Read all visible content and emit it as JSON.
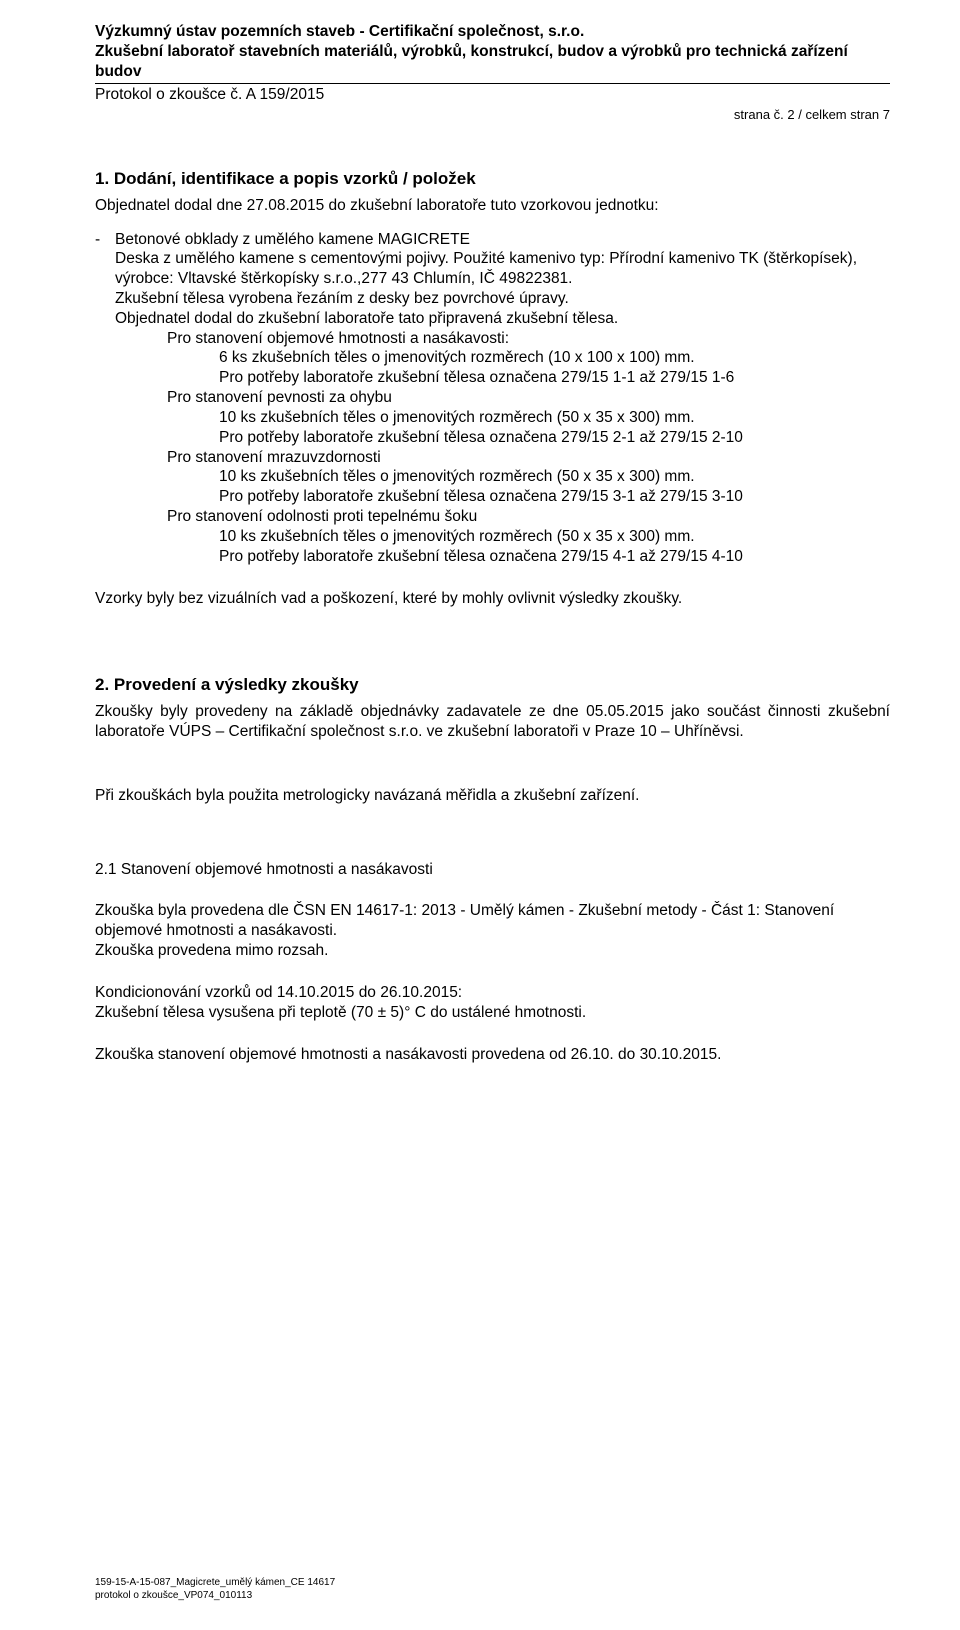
{
  "header": {
    "org_line1": "Výzkumný ústav pozemních staveb - Certifikační společnost, s.r.o.",
    "org_line2": "Zkušební laboratoř stavebních materiálů, výrobků, konstrukcí, budov a výrobků pro technická zařízení budov",
    "protocol": "Protokol o zkoušce č. A 159/2015",
    "page_info": "strana č. 2 / celkem stran 7"
  },
  "section1": {
    "title": "1.  Dodání, identifikace a popis vzorků / položek",
    "line_order": "Objednatel dodal dne 27.08.2015 do zkušební laboratoře tuto vzorkovou jednotku:",
    "bullet_text": "Betonové obklady z umělého kamene MAGICRETE",
    "desc_1": "Deska z umělého kamene s cementovými pojivy. Použité kamenivo typ: Přírodní kamenivo TK (štěrkopísek), výrobce: Vltavské štěrkopísky s.r.o.,277 43 Chlumín, IČ 49822381.",
    "desc_2": "Zkušební tělesa vyrobena řezáním z desky bez povrchové úpravy.",
    "desc_3": "Objednatel dodal do zkušební laboratoře tato připravená zkušební tělesa.",
    "groups": [
      {
        "title": "Pro stanovení objemové hmotnosti a nasákavosti:",
        "row1": "6 ks zkušebních těles o jmenovitých rozměrech (10 x 100 x 100) mm.",
        "row2": "Pro potřeby laboratoře zkušební tělesa označena 279/15 1-1 až 279/15 1-6"
      },
      {
        "title": "Pro stanovení pevnosti za ohybu",
        "row1": "10 ks zkušebních těles o jmenovitých rozměrech (50 x 35 x 300) mm.",
        "row2": "Pro potřeby laboratoře zkušební tělesa označena 279/15 2-1 až 279/15 2-10"
      },
      {
        "title": "Pro stanovení mrazuvzdornosti",
        "row1": "10 ks zkušebních těles o jmenovitých rozměrech (50 x 35 x 300) mm.",
        "row2": "Pro potřeby laboratoře zkušební tělesa označena 279/15 3-1 až 279/15 3-10"
      },
      {
        "title": "Pro stanovení odolnosti proti tepelnému šoku",
        "row1": "10 ks zkušebních těles o jmenovitých rozměrech (50 x 35 x 300) mm.",
        "row2": "Pro potřeby laboratoře zkušební tělesa označena 279/15 4-1 až 279/15 4-10"
      }
    ],
    "closing": "Vzorky byly bez vizuálních vad a poškození, které by mohly ovlivnit výsledky zkoušky."
  },
  "section2": {
    "title": "2.  Provedení a výsledky zkoušky",
    "para1": "Zkoušky byly provedeny na základě objednávky zadavatele ze dne 05.05.2015 jako součást činnosti zkušební laboratoře VÚPS – Certifikační společnost s.r.o. ve zkušební laboratoři v Praze 10 – Uhříněvsi.",
    "para2": "Při zkouškách byla použita metrologicky navázaná měřidla a zkušební zařízení.",
    "sub21_title": "2.1  Stanovení objemové hmotnosti a nasákavosti",
    "sub21_p1": "Zkouška byla provedena dle ČSN EN 14617-1: 2013 - Umělý kámen - Zkušební metody - Část 1: Stanovení objemové hmotnosti a nasákavosti.",
    "sub21_p2": "Zkouška provedena mimo rozsah.",
    "sub21_p3": "Kondicionování vzorků od 14.10.2015 do 26.10.2015:",
    "sub21_p4": "Zkušební tělesa vysušena při teplotě (70 ± 5)° C do ustálené hmotnosti.",
    "sub21_p5": "Zkouška stanovení objemové hmotnosti a nasákavosti provedena od 26.10. do 30.10.2015."
  },
  "footer": {
    "line1": "159-15-A-15-087_Magicrete_umělý kámen_CE 14617",
    "line2": "protokol o zkoušce_VP074_010113"
  }
}
